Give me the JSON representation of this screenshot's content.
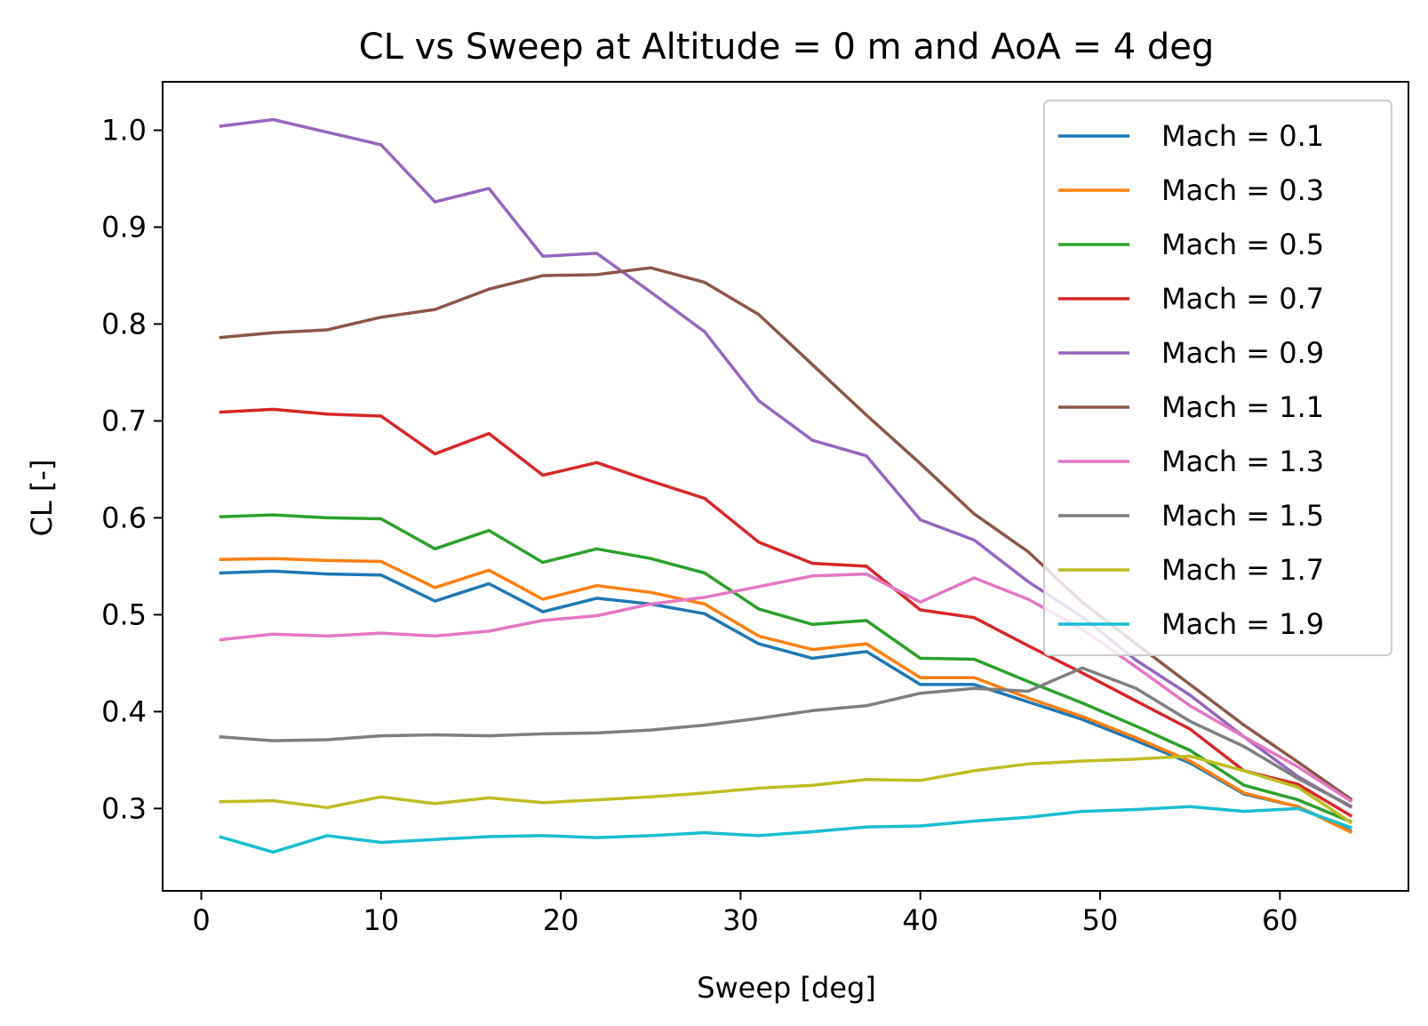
{
  "chart_data": {
    "type": "line",
    "title": "CL vs Sweep at Altitude = 0 m and AoA = 4 deg",
    "xlabel": "Sweep [deg]",
    "ylabel": "CL [-]",
    "xlim": [
      -2.15,
      67.15
    ],
    "ylim": [
      0.215,
      1.05
    ],
    "xticks": [
      0,
      10,
      20,
      30,
      40,
      50,
      60
    ],
    "yticks": [
      0.3,
      0.4,
      0.5,
      0.6,
      0.7,
      0.8,
      0.9,
      1.0
    ],
    "xtick_labels": [
      "0",
      "10",
      "20",
      "30",
      "40",
      "50",
      "60"
    ],
    "ytick_labels": [
      "0.3",
      "0.4",
      "0.5",
      "0.6",
      "0.7",
      "0.8",
      "0.9",
      "1.0"
    ],
    "grid": false,
    "legend_position": "top-right",
    "x": [
      1,
      4,
      7,
      10,
      13,
      16,
      19,
      22,
      25,
      28,
      31,
      34,
      37,
      40,
      43,
      46,
      49,
      52,
      55,
      58,
      61,
      64
    ],
    "series": [
      {
        "name": "Mach = 0.1",
        "color": "#1f77b4",
        "values": [
          0.543,
          0.545,
          0.542,
          0.541,
          0.514,
          0.532,
          0.503,
          0.517,
          0.511,
          0.501,
          0.47,
          0.455,
          0.462,
          0.428,
          0.428,
          0.41,
          0.392,
          0.37,
          0.347,
          0.315,
          0.302,
          0.276
        ]
      },
      {
        "name": "Mach = 0.3",
        "color": "#ff7f0e",
        "values": [
          0.557,
          0.558,
          0.556,
          0.555,
          0.528,
          0.546,
          0.516,
          0.53,
          0.523,
          0.511,
          0.478,
          0.464,
          0.47,
          0.435,
          0.435,
          0.414,
          0.395,
          0.373,
          0.349,
          0.316,
          0.302,
          0.275
        ]
      },
      {
        "name": "Mach = 0.5",
        "color": "#2ca02c",
        "values": [
          0.601,
          0.603,
          0.6,
          0.599,
          0.568,
          0.587,
          0.554,
          0.568,
          0.558,
          0.543,
          0.506,
          0.49,
          0.494,
          0.455,
          0.454,
          0.431,
          0.409,
          0.385,
          0.36,
          0.324,
          0.309,
          0.286
        ]
      },
      {
        "name": "Mach = 0.7",
        "color": "#d62728",
        "values": [
          0.709,
          0.712,
          0.707,
          0.705,
          0.666,
          0.687,
          0.644,
          0.657,
          0.638,
          0.62,
          0.575,
          0.553,
          0.55,
          0.505,
          0.497,
          0.468,
          0.44,
          0.411,
          0.382,
          0.339,
          0.325,
          0.292
        ]
      },
      {
        "name": "Mach = 0.9",
        "color": "#9467bd",
        "values": [
          1.004,
          1.011,
          0.998,
          0.985,
          0.926,
          0.94,
          0.87,
          0.873,
          0.833,
          0.792,
          0.721,
          0.68,
          0.664,
          0.598,
          0.577,
          0.534,
          0.498,
          0.453,
          0.417,
          0.374,
          0.333,
          0.301
        ]
      },
      {
        "name": "Mach = 1.1",
        "color": "#8c564b",
        "values": [
          0.786,
          0.791,
          0.794,
          0.807,
          0.815,
          0.836,
          0.85,
          0.851,
          0.858,
          0.843,
          0.81,
          0.758,
          0.706,
          0.656,
          0.604,
          0.565,
          0.513,
          0.47,
          0.428,
          0.386,
          0.348,
          0.309
        ]
      },
      {
        "name": "Mach = 1.3",
        "color": "#e377c2",
        "values": [
          0.474,
          0.48,
          0.478,
          0.481,
          0.478,
          0.483,
          0.494,
          0.499,
          0.511,
          0.518,
          0.529,
          0.54,
          0.542,
          0.513,
          0.538,
          0.516,
          0.485,
          0.446,
          0.406,
          0.374,
          0.343,
          0.307
        ]
      },
      {
        "name": "Mach = 1.5",
        "color": "#7f7f7f",
        "values": [
          0.374,
          0.37,
          0.371,
          0.375,
          0.376,
          0.375,
          0.377,
          0.378,
          0.381,
          0.386,
          0.393,
          0.401,
          0.406,
          0.419,
          0.424,
          0.421,
          0.445,
          0.424,
          0.39,
          0.364,
          0.331,
          0.302
        ]
      },
      {
        "name": "Mach = 1.7",
        "color": "#bcbd22",
        "values": [
          0.307,
          0.308,
          0.301,
          0.312,
          0.305,
          0.311,
          0.306,
          0.309,
          0.312,
          0.316,
          0.321,
          0.324,
          0.33,
          0.329,
          0.339,
          0.346,
          0.349,
          0.351,
          0.354,
          0.339,
          0.322,
          0.285
        ]
      },
      {
        "name": "Mach = 1.9",
        "color": "#17becf",
        "values": [
          0.271,
          0.255,
          0.272,
          0.265,
          0.268,
          0.271,
          0.272,
          0.27,
          0.272,
          0.275,
          0.272,
          0.276,
          0.281,
          0.282,
          0.287,
          0.291,
          0.297,
          0.299,
          0.302,
          0.297,
          0.3,
          0.28
        ]
      }
    ]
  }
}
